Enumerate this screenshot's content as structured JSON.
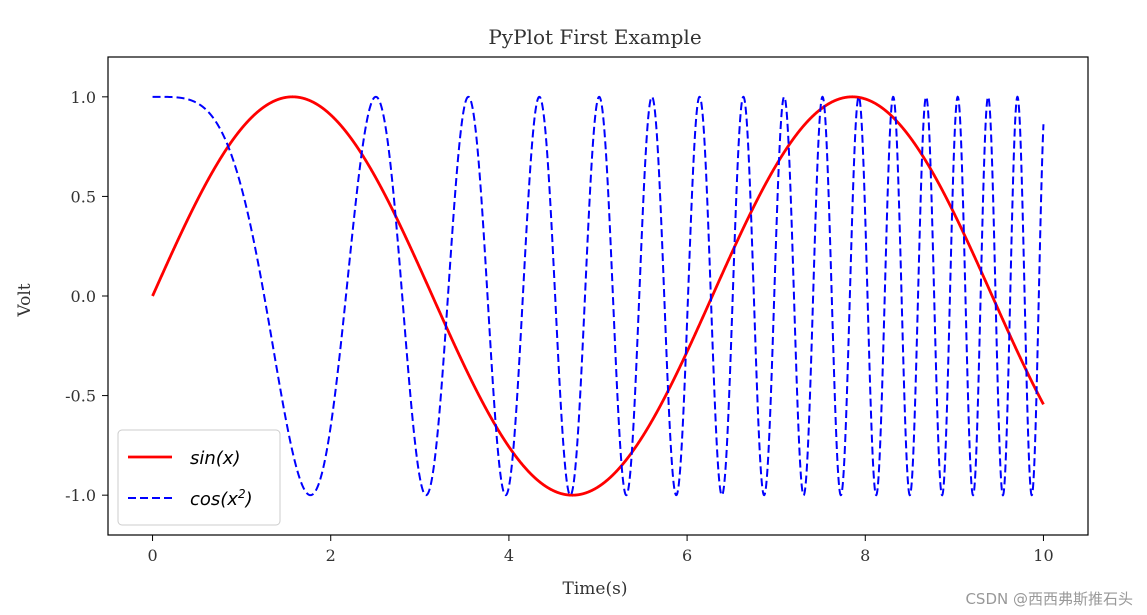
{
  "chart_data": {
    "type": "line",
    "title": "PyPlot First Example",
    "xlabel": "Time(s)",
    "ylabel": "Volt",
    "xlim": [
      -0.5,
      10.5
    ],
    "ylim": [
      -1.2,
      1.2
    ],
    "xticks": [
      0,
      2,
      4,
      6,
      8,
      10
    ],
    "xtick_labels": [
      "0",
      "2",
      "4",
      "6",
      "8",
      "10"
    ],
    "yticks": [
      1.0,
      0.5,
      0.0,
      -0.5,
      -1.0
    ],
    "ytick_labels": [
      "1.0",
      "0.5",
      "0.0",
      "-0.5",
      "-1.0"
    ],
    "grid": false,
    "legend_position": "lower-left",
    "x_range": [
      0,
      10
    ],
    "series": [
      {
        "name": "sin(x)",
        "label_base": "sin(x)",
        "label_sup": "",
        "function": "sin(x)",
        "color": "#ff0000",
        "style": "solid"
      },
      {
        "name": "cos(x²)",
        "label_base": "cos(x",
        "label_sup": "2",
        "label_tail": ")",
        "function": "cos(x^2)",
        "color": "#0000ff",
        "style": "dashed"
      }
    ]
  },
  "watermark": "CSDN @西西弗斯推石头"
}
